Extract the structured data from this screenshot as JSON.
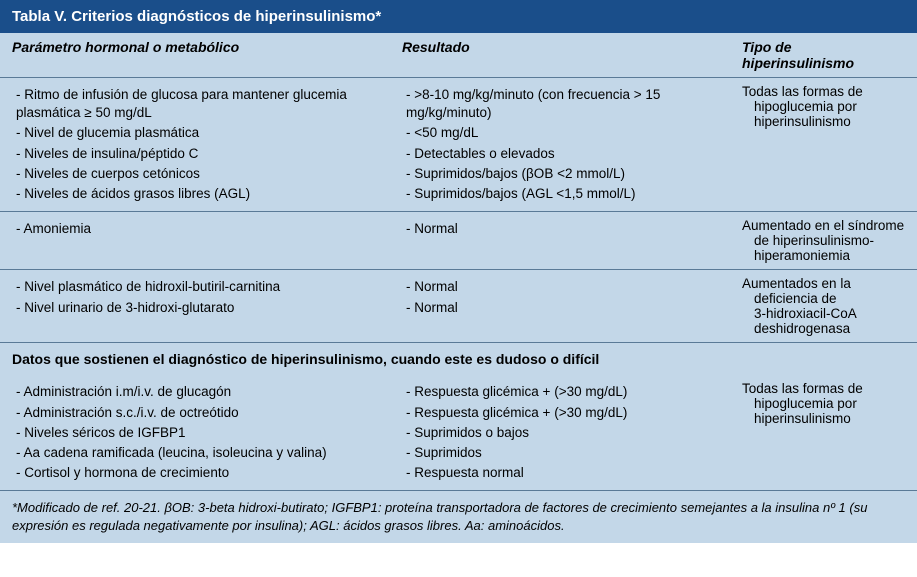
{
  "title": "Tabla V.  Criterios diagnósticos de hiperinsulinismo*",
  "headers": {
    "param": "Parámetro hormonal o metabólico",
    "result": "Resultado",
    "type": "Tipo de hiperinsulinismo"
  },
  "group1": {
    "params": [
      "Ritmo de infusión de glucosa para mantener glucemia plasmática ≥ 50 mg/dL",
      "Nivel de glucemia plasmática",
      "Niveles de insulina/péptido C",
      "Niveles de cuerpos cetónicos",
      "Niveles de ácidos grasos libres (AGL)"
    ],
    "results": [
      ">8-10 mg/kg/minuto (con frecuencia > 15 mg/kg/minuto)",
      "<50 mg/dL",
      "Detectables o elevados",
      "Suprimidos/bajos (βOB <2 mmol/L)",
      "Suprimidos/bajos (AGL <1,5 mmol/L)"
    ],
    "type_line1": "Todas las formas de",
    "type_line2": "hipoglucemia por",
    "type_line3": "hiperinsulinismo"
  },
  "group2": {
    "params": [
      "Amoniemia"
    ],
    "results": [
      "Normal"
    ],
    "type_line1": "Aumentado en el síndrome",
    "type_line2": "de hiperinsulinismo-",
    "type_line3": "hiperamoniemia"
  },
  "group3": {
    "params": [
      "Nivel plasmático de hidroxil-butiril-carnitina",
      "Nivel urinario de 3-hidroxi-glutarato"
    ],
    "results": [
      "Normal",
      "Normal"
    ],
    "type_line1": "Aumentados en la",
    "type_line2": "deficiencia de",
    "type_line3": "3-hidroxiacil-CoA",
    "type_line4": "deshidrogenasa"
  },
  "section_heading": "Datos que sostienen el diagnóstico de hiperinsulinismo, cuando este es dudoso o difícil",
  "group4": {
    "params": [
      "Administración i.m/i.v. de glucagón",
      "Administración s.c./i.v. de octreótido",
      "Niveles séricos de IGFBP1",
      "Aa cadena ramificada (leucina, isoleucina y valina)",
      "Cortisol y hormona de crecimiento"
    ],
    "results": [
      "Respuesta glicémica + (>30 mg/dL)",
      "Respuesta glicémica + (>30 mg/dL)",
      "Suprimidos o bajos",
      "Suprimidos",
      "Respuesta normal"
    ],
    "type_line1": "Todas las formas de",
    "type_line2": "hipoglucemia por",
    "type_line3": "hiperinsulinismo"
  },
  "footnote": "*Modificado de ref. 20-21. βOB: 3-beta hidroxi-butirato; IGFBP1: proteína transportadora de factores de crecimiento semejantes a la insulina nº 1 (su expresión es regulada negativamente por insulina); AGL: ácidos grasos libres. Aa: aminoácidos.",
  "colors": {
    "header_bg": "#1a4e8a",
    "body_bg": "#c3d7e8",
    "rule": "#5a7a97",
    "text": "#000000",
    "header_text": "#ffffff"
  }
}
